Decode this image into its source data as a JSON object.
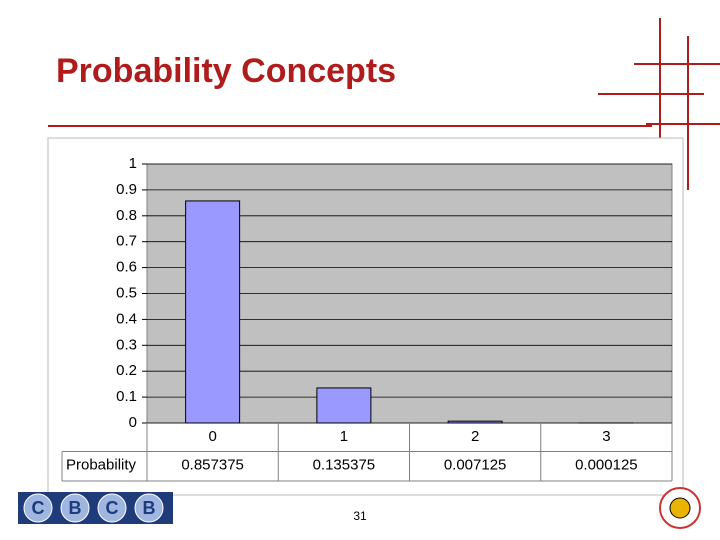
{
  "slide": {
    "title": "Probability Concepts",
    "page_number": "31",
    "logo": [
      "C",
      "B",
      "C",
      "B"
    ]
  },
  "chart_data": {
    "type": "bar",
    "categories": [
      "0",
      "1",
      "2",
      "3"
    ],
    "series": [
      {
        "name": "Probability",
        "color": "#9999ff",
        "values": [
          0.857375,
          0.135375,
          0.007125,
          0.000125
        ]
      }
    ],
    "ylim": [
      0,
      1
    ],
    "yticks": [
      0,
      0.1,
      0.2,
      0.3,
      0.4,
      0.5,
      0.6,
      0.7,
      0.8,
      0.9,
      1
    ],
    "grid": true,
    "plot_background": "#c0c0c0",
    "data_table": true
  }
}
